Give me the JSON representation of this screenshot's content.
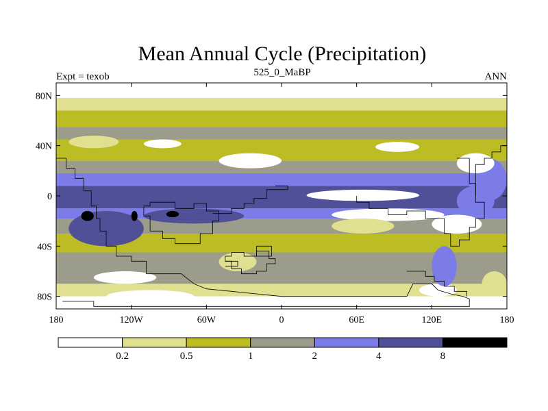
{
  "chart_data": {
    "type": "heatmap",
    "title": "Mean Annual Cycle (Precipitation)",
    "subtitle_left": "Expt = texob",
    "subtitle_center": "525_0_MaBP",
    "subtitle_right": "ANN",
    "x_range": [
      -180,
      180
    ],
    "y_range": [
      -90,
      90
    ],
    "x_ticks": [
      {
        "value": -180,
        "label": "180"
      },
      {
        "value": -120,
        "label": "120W"
      },
      {
        "value": -60,
        "label": "60W"
      },
      {
        "value": 0,
        "label": "0"
      },
      {
        "value": 60,
        "label": "60E"
      },
      {
        "value": 120,
        "label": "120E"
      },
      {
        "value": 180,
        "label": "180"
      }
    ],
    "y_ticks": [
      {
        "value": 80,
        "label": "80N"
      },
      {
        "value": 40,
        "label": "40N"
      },
      {
        "value": 0,
        "label": "0"
      },
      {
        "value": -40,
        "label": "40S"
      },
      {
        "value": -80,
        "label": "80S"
      }
    ],
    "legend": {
      "placement": "bottom",
      "levels": [
        "0.2",
        "0.5",
        "1",
        "2",
        "4",
        "8"
      ],
      "colors": [
        "#ffffff",
        "#e0e090",
        "#bcbc24",
        "#9c9c8c",
        "#7c7ce8",
        "#505098",
        "#000000"
      ]
    },
    "bands": [
      {
        "lat": [
          78,
          90
        ],
        "level": 0
      },
      {
        "lat": [
          68,
          78
        ],
        "level": 1
      },
      {
        "lat": [
          55,
          68
        ],
        "level": 2
      },
      {
        "lat": [
          45,
          55
        ],
        "level": 3
      },
      {
        "lat": [
          28,
          45
        ],
        "level": 2
      },
      {
        "lat": [
          18,
          28
        ],
        "level": 3
      },
      {
        "lat": [
          8,
          18
        ],
        "level": 4
      },
      {
        "lat": [
          -10,
          8
        ],
        "level": 5
      },
      {
        "lat": [
          -18,
          -10
        ],
        "level": 4
      },
      {
        "lat": [
          -30,
          -18
        ],
        "level": 3
      },
      {
        "lat": [
          -45,
          -30
        ],
        "level": 2
      },
      {
        "lat": [
          -70,
          -45
        ],
        "level": 3
      },
      {
        "lat": [
          -80,
          -70
        ],
        "level": 1
      },
      {
        "lat": [
          -90,
          -80
        ],
        "level": 0
      }
    ],
    "patches": [
      {
        "lon": [
          -170,
          -110
        ],
        "lat": [
          -40,
          -12
        ],
        "level": 5
      },
      {
        "lon": [
          -110,
          -30
        ],
        "lat": [
          -22,
          -10
        ],
        "level": 5
      },
      {
        "lon": [
          -160,
          -150
        ],
        "lat": [
          -20,
          -12
        ],
        "level": 6
      },
      {
        "lon": [
          -120,
          -115
        ],
        "lat": [
          -20,
          -12
        ],
        "level": 6
      },
      {
        "lon": [
          -92,
          -82
        ],
        "lat": [
          -17,
          -12
        ],
        "level": 6
      },
      {
        "lon": [
          20,
          110
        ],
        "lat": [
          -4,
          5
        ],
        "level": 0
      },
      {
        "lon": [
          40,
          130
        ],
        "lat": [
          -20,
          -10
        ],
        "level": 0
      },
      {
        "lon": [
          120,
          160
        ],
        "lat": [
          -30,
          -15
        ],
        "level": 0
      },
      {
        "lon": [
          140,
          170
        ],
        "lat": [
          -16,
          8
        ],
        "level": 4
      },
      {
        "lon": [
          150,
          180
        ],
        "lat": [
          -4,
          30
        ],
        "level": 4
      },
      {
        "lon": [
          140,
          170
        ],
        "lat": [
          18,
          34
        ],
        "level": 0
      },
      {
        "lon": [
          -50,
          0
        ],
        "lat": [
          22,
          34
        ],
        "level": 0
      },
      {
        "lon": [
          -110,
          -80
        ],
        "lat": [
          38,
          45
        ],
        "level": 0
      },
      {
        "lon": [
          75,
          110
        ],
        "lat": [
          35,
          43
        ],
        "level": 0
      },
      {
        "lon": [
          -170,
          -130
        ],
        "lat": [
          38,
          48
        ],
        "level": 1
      },
      {
        "lon": [
          -50,
          -20
        ],
        "lat": [
          -60,
          -45
        ],
        "level": 1
      },
      {
        "lon": [
          40,
          90
        ],
        "lat": [
          -30,
          -18
        ],
        "level": 1
      },
      {
        "lon": [
          -150,
          -100
        ],
        "lat": [
          -70,
          -60
        ],
        "level": 0
      },
      {
        "lon": [
          -140,
          -70
        ],
        "lat": [
          -85,
          -75
        ],
        "level": 0
      },
      {
        "lon": [
          110,
          140
        ],
        "lat": [
          -80,
          -70
        ],
        "level": 0
      },
      {
        "lon": [
          120,
          140
        ],
        "lat": [
          -72,
          -40
        ],
        "level": 4
      },
      {
        "lon": [
          160,
          180
        ],
        "lat": [
          -80,
          -60
        ],
        "level": 1
      }
    ],
    "coastlines": [
      [
        [
          -180,
          30
        ],
        [
          -172,
          30
        ],
        [
          -172,
          22
        ],
        [
          -165,
          22
        ],
        [
          -165,
          14
        ],
        [
          -158,
          14
        ],
        [
          -158,
          4
        ],
        [
          -152,
          4
        ],
        [
          -152,
          -8
        ],
        [
          -148,
          -8
        ],
        [
          -148,
          -18
        ],
        [
          -145,
          -18
        ],
        [
          -145,
          -28
        ],
        [
          -140,
          -28
        ],
        [
          -140,
          -40
        ],
        [
          -132,
          -40
        ],
        [
          -132,
          -48
        ],
        [
          -120,
          -48
        ],
        [
          -120,
          -52
        ],
        [
          -108,
          -52
        ],
        [
          -108,
          -62
        ],
        [
          -80,
          -62
        ],
        [
          -70,
          -70
        ],
        [
          -60,
          -74
        ],
        [
          -40,
          -76
        ],
        [
          -20,
          -78
        ],
        [
          0,
          -80
        ],
        [
          40,
          -80
        ],
        [
          60,
          -80
        ],
        [
          80,
          -80
        ],
        [
          100,
          -80
        ],
        [
          105,
          -70
        ],
        [
          120,
          -70
        ],
        [
          125,
          -75
        ],
        [
          135,
          -78
        ],
        [
          145,
          -80
        ],
        [
          150,
          -82
        ],
        [
          150,
          -88
        ],
        [
          -150,
          -88
        ],
        [
          -150,
          -84
        ],
        [
          -175,
          -84
        ]
      ],
      [
        [
          -110,
          -8
        ],
        [
          -105,
          -8
        ],
        [
          -105,
          -5
        ],
        [
          -85,
          -5
        ],
        [
          -85,
          -10
        ],
        [
          -70,
          -10
        ],
        [
          -70,
          -6
        ],
        [
          -60,
          -6
        ],
        [
          -60,
          -12
        ],
        [
          -50,
          -12
        ],
        [
          -50,
          -20
        ],
        [
          -55,
          -20
        ],
        [
          -55,
          -30
        ],
        [
          -65,
          -30
        ],
        [
          -65,
          -38
        ],
        [
          -85,
          -38
        ],
        [
          -85,
          -34
        ],
        [
          -95,
          -34
        ],
        [
          -95,
          -28
        ],
        [
          -105,
          -28
        ],
        [
          -105,
          -16
        ],
        [
          -110,
          -16
        ],
        [
          -110,
          -8
        ]
      ],
      [
        [
          -5,
          8
        ],
        [
          5,
          8
        ],
        [
          5,
          5
        ],
        [
          -12,
          5
        ],
        [
          -12,
          -2
        ],
        [
          -22,
          -2
        ],
        [
          -22,
          -6
        ],
        [
          -30,
          -6
        ],
        [
          -30,
          -10
        ],
        [
          -40,
          -10
        ],
        [
          -40,
          -14
        ],
        [
          -55,
          -14
        ]
      ],
      [
        [
          -40,
          -45
        ],
        [
          -30,
          -45
        ],
        [
          -30,
          -48
        ],
        [
          -20,
          -48
        ],
        [
          -20,
          -44
        ],
        [
          -10,
          -44
        ],
        [
          -10,
          -50
        ],
        [
          -5,
          -50
        ],
        [
          -5,
          -54
        ],
        [
          -12,
          -54
        ],
        [
          -12,
          -60
        ],
        [
          -20,
          -60
        ],
        [
          -20,
          -62
        ],
        [
          -32,
          -62
        ],
        [
          -32,
          -58
        ],
        [
          -40,
          -58
        ],
        [
          -40,
          -52
        ],
        [
          -45,
          -52
        ],
        [
          -45,
          -48
        ],
        [
          -40,
          -48
        ],
        [
          -40,
          -45
        ]
      ],
      [
        [
          -20,
          -40
        ],
        [
          -8,
          -40
        ],
        [
          -8,
          -48
        ],
        [
          -20,
          -48
        ],
        [
          -20,
          -40
        ]
      ],
      [
        [
          -45,
          -52
        ],
        [
          -35,
          -52
        ],
        [
          -35,
          -56
        ],
        [
          -45,
          -56
        ]
      ],
      [
        [
          140,
          30
        ],
        [
          150,
          30
        ],
        [
          150,
          10
        ],
        [
          155,
          10
        ],
        [
          155,
          -5
        ],
        [
          162,
          -5
        ],
        [
          162,
          -18
        ],
        [
          155,
          -18
        ],
        [
          155,
          -25
        ],
        [
          150,
          -25
        ],
        [
          150,
          -35
        ],
        [
          142,
          -35
        ],
        [
          142,
          -40
        ],
        [
          135,
          -40
        ],
        [
          135,
          -30
        ],
        [
          130,
          -30
        ],
        [
          130,
          -18
        ],
        [
          115,
          -18
        ],
        [
          115,
          -12
        ],
        [
          100,
          -12
        ],
        [
          100,
          -15
        ],
        [
          85,
          -15
        ],
        [
          85,
          -10
        ],
        [
          70,
          -10
        ],
        [
          70,
          -5
        ],
        [
          60,
          -5
        ],
        [
          60,
          0
        ]
      ],
      [
        [
          155,
          0
        ],
        [
          155,
          25
        ],
        [
          162,
          25
        ],
        [
          162,
          30
        ],
        [
          168,
          30
        ],
        [
          168,
          35
        ],
        [
          175,
          35
        ],
        [
          175,
          40
        ],
        [
          180,
          40
        ]
      ],
      [
        [
          100,
          -60
        ],
        [
          115,
          -60
        ],
        [
          115,
          -64
        ],
        [
          122,
          -64
        ],
        [
          122,
          -68
        ],
        [
          130,
          -68
        ],
        [
          130,
          -72
        ],
        [
          138,
          -72
        ],
        [
          138,
          -76
        ],
        [
          148,
          -76
        ],
        [
          148,
          -80
        ]
      ]
    ]
  }
}
